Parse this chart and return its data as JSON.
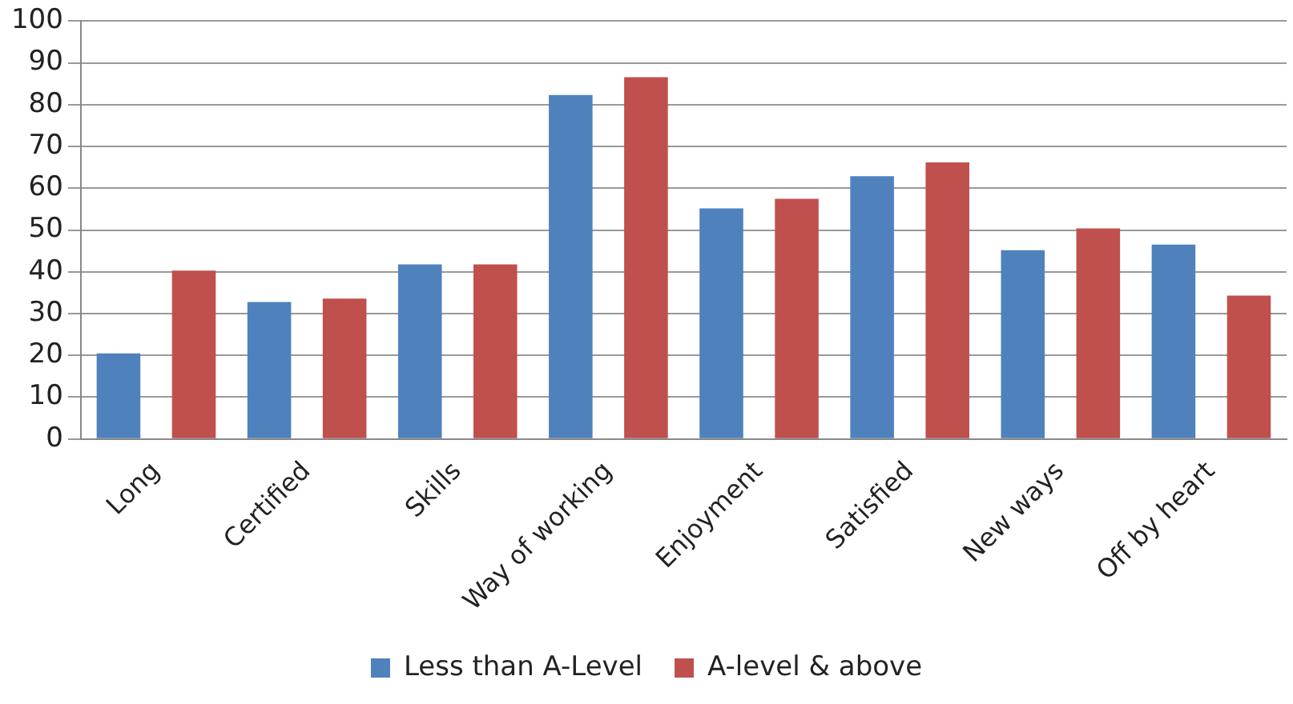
{
  "chart_data": {
    "type": "bar",
    "categories": [
      "Long",
      "Certified",
      "Skills",
      "Way of working",
      "Enjoyment",
      "Satisfied",
      "New ways",
      "Off by heart"
    ],
    "series": [
      {
        "name": "Less than A-Level",
        "color": "#4f81bd",
        "values": [
          20.5,
          32.8,
          41.8,
          82.3,
          55.2,
          62.9,
          45.2,
          46.5
        ]
      },
      {
        "name": "A-level & above",
        "color": "#c0504d",
        "values": [
          40.3,
          33.6,
          41.8,
          86.6,
          57.5,
          66.2,
          50.4,
          34.3
        ]
      }
    ],
    "ylim": [
      0,
      100
    ],
    "yticks": [
      0,
      10,
      20,
      30,
      40,
      50,
      60,
      70,
      80,
      90,
      100
    ],
    "grid": "y",
    "legend": "bottom"
  }
}
